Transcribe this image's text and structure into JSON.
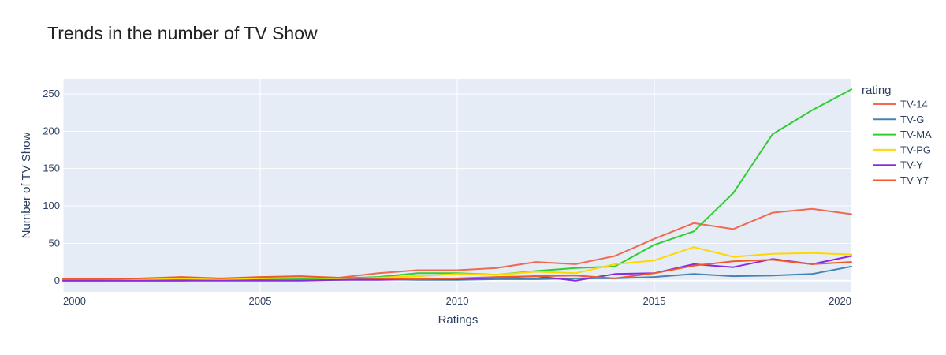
{
  "chart_data": {
    "type": "line",
    "title": "Trends in the number of TV Show",
    "xlabel": "Ratings",
    "ylabel": "Number of TV Show",
    "xlim": [
      2000,
      2020
    ],
    "ylim": [
      -15,
      270
    ],
    "x_ticks": [
      2000,
      2005,
      2010,
      2015,
      2020
    ],
    "y_ticks": [
      0,
      50,
      100,
      150,
      200,
      250
    ],
    "grid": true,
    "legend_title": "rating",
    "legend_position": "right",
    "plot_background": "#e5ecf6",
    "x": [
      2000,
      2001,
      2002,
      2003,
      2004,
      2005,
      2006,
      2007,
      2008,
      2009,
      2010,
      2011,
      2012,
      2013,
      2014,
      2015,
      2016,
      2017,
      2018,
      2019,
      2020
    ],
    "series": [
      {
        "name": "TV-14",
        "color": "#ef6a4f",
        "values": [
          2,
          1,
          2,
          4,
          2,
          4,
          3,
          4,
          10,
          14,
          14,
          17,
          25,
          22,
          33,
          56,
          77,
          69,
          91,
          96,
          89
        ]
      },
      {
        "name": "TV-G",
        "color": "#4682b4",
        "values": [
          0,
          0,
          0,
          0,
          1,
          1,
          1,
          1,
          2,
          1,
          1,
          2,
          2,
          3,
          3,
          5,
          9,
          6,
          7,
          9,
          19
        ]
      },
      {
        "name": "TV-MA",
        "color": "#32cd32",
        "values": [
          0,
          0,
          1,
          1,
          2,
          3,
          2,
          3,
          5,
          10,
          10,
          8,
          13,
          17,
          19,
          48,
          66,
          117,
          196,
          228,
          256
        ]
      },
      {
        "name": "TV-PG",
        "color": "#ffd700",
        "values": [
          2,
          1,
          2,
          3,
          2,
          3,
          4,
          3,
          4,
          6,
          9,
          8,
          12,
          10,
          22,
          27,
          45,
          32,
          36,
          37,
          35
        ]
      },
      {
        "name": "TV-Y",
        "color": "#8a2be2",
        "values": [
          0,
          0,
          0,
          0,
          0,
          0,
          0,
          1,
          1,
          2,
          2,
          4,
          6,
          0,
          9,
          10,
          22,
          18,
          29,
          22,
          33
        ]
      },
      {
        "name": "TV-Y7",
        "color": "#f05a28",
        "values": [
          2,
          2,
          3,
          5,
          3,
          5,
          6,
          4,
          3,
          2,
          3,
          5,
          6,
          7,
          3,
          10,
          20,
          26,
          28,
          22,
          25
        ]
      }
    ]
  }
}
